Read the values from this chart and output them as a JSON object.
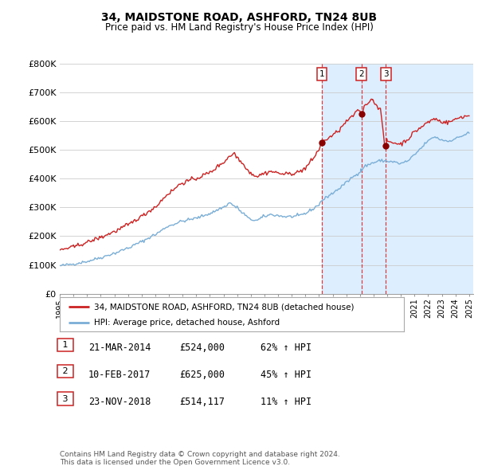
{
  "title": "34, MAIDSTONE ROAD, ASHFORD, TN24 8UB",
  "subtitle": "Price paid vs. HM Land Registry's House Price Index (HPI)",
  "ylim": [
    0,
    800000
  ],
  "yticks": [
    0,
    100000,
    200000,
    300000,
    400000,
    500000,
    600000,
    700000,
    800000
  ],
  "ytick_labels": [
    "£0",
    "£100K",
    "£200K",
    "£300K",
    "£400K",
    "£500K",
    "£600K",
    "£700K",
    "£800K"
  ],
  "xlim_start": 1995.0,
  "xlim_end": 2025.3,
  "transactions": [
    {
      "date_num": 2014.22,
      "price": 524000,
      "label": "1",
      "date_str": "21-MAR-2014",
      "price_str": "£524,000",
      "pct_str": "62% ↑ HPI"
    },
    {
      "date_num": 2017.11,
      "price": 625000,
      "label": "2",
      "date_str": "10-FEB-2017",
      "price_str": "£625,000",
      "pct_str": "45% ↑ HPI"
    },
    {
      "date_num": 2018.9,
      "price": 514117,
      "label": "3",
      "date_str": "23-NOV-2018",
      "price_str": "£514,117",
      "pct_str": "11% ↑ HPI"
    }
  ],
  "line_color_red": "#cc2222",
  "line_color_blue": "#7aaed6",
  "shade_color": "#ddeeff",
  "grid_color": "#cccccc",
  "background_color": "#ffffff",
  "legend_label_red": "34, MAIDSTONE ROAD, ASHFORD, TN24 8UB (detached house)",
  "legend_label_blue": "HPI: Average price, detached house, Ashford",
  "footnote": "Contains HM Land Registry data © Crown copyright and database right 2024.\nThis data is licensed under the Open Government Licence v3.0.",
  "hpi_waypoints": [
    [
      1995.0,
      97000
    ],
    [
      1996.0,
      103000
    ],
    [
      1997.0,
      112000
    ],
    [
      1998.0,
      125000
    ],
    [
      1999.0,
      140000
    ],
    [
      2000.0,
      158000
    ],
    [
      2001.0,
      180000
    ],
    [
      2002.0,
      205000
    ],
    [
      2003.0,
      235000
    ],
    [
      2004.0,
      252000
    ],
    [
      2005.0,
      262000
    ],
    [
      2006.0,
      278000
    ],
    [
      2007.0,
      300000
    ],
    [
      2007.5,
      315000
    ],
    [
      2008.0,
      300000
    ],
    [
      2008.5,
      278000
    ],
    [
      2009.0,
      258000
    ],
    [
      2009.5,
      255000
    ],
    [
      2010.0,
      268000
    ],
    [
      2010.5,
      275000
    ],
    [
      2011.0,
      272000
    ],
    [
      2011.5,
      268000
    ],
    [
      2012.0,
      268000
    ],
    [
      2012.5,
      270000
    ],
    [
      2013.0,
      278000
    ],
    [
      2013.5,
      292000
    ],
    [
      2014.0,
      308000
    ],
    [
      2014.22,
      323000
    ],
    [
      2015.0,
      348000
    ],
    [
      2015.5,
      365000
    ],
    [
      2016.0,
      385000
    ],
    [
      2016.5,
      405000
    ],
    [
      2017.0,
      422000
    ],
    [
      2017.11,
      430000
    ],
    [
      2017.5,
      445000
    ],
    [
      2018.0,
      455000
    ],
    [
      2018.5,
      462000
    ],
    [
      2018.9,
      462000
    ],
    [
      2019.0,
      460000
    ],
    [
      2019.5,
      458000
    ],
    [
      2020.0,
      452000
    ],
    [
      2020.5,
      460000
    ],
    [
      2021.0,
      480000
    ],
    [
      2021.5,
      505000
    ],
    [
      2022.0,
      530000
    ],
    [
      2022.5,
      545000
    ],
    [
      2023.0,
      535000
    ],
    [
      2023.5,
      530000
    ],
    [
      2024.0,
      538000
    ],
    [
      2024.5,
      548000
    ],
    [
      2025.0,
      558000
    ]
  ],
  "prop_waypoints": [
    [
      1995.0,
      152000
    ],
    [
      1996.0,
      162000
    ],
    [
      1997.0,
      178000
    ],
    [
      1998.0,
      195000
    ],
    [
      1999.0,
      215000
    ],
    [
      2000.0,
      238000
    ],
    [
      2001.0,
      268000
    ],
    [
      2002.0,
      300000
    ],
    [
      2003.0,
      348000
    ],
    [
      2004.0,
      385000
    ],
    [
      2005.0,
      400000
    ],
    [
      2006.0,
      420000
    ],
    [
      2007.0,
      455000
    ],
    [
      2007.5,
      478000
    ],
    [
      2007.8,
      488000
    ],
    [
      2008.0,
      475000
    ],
    [
      2008.5,
      450000
    ],
    [
      2009.0,
      420000
    ],
    [
      2009.5,
      408000
    ],
    [
      2010.0,
      418000
    ],
    [
      2010.5,
      425000
    ],
    [
      2011.0,
      420000
    ],
    [
      2011.5,
      415000
    ],
    [
      2012.0,
      418000
    ],
    [
      2012.5,
      422000
    ],
    [
      2013.0,
      435000
    ],
    [
      2013.5,
      462000
    ],
    [
      2014.0,
      498000
    ],
    [
      2014.22,
      524000
    ],
    [
      2014.5,
      535000
    ],
    [
      2015.0,
      548000
    ],
    [
      2015.5,
      568000
    ],
    [
      2016.0,
      595000
    ],
    [
      2016.5,
      618000
    ],
    [
      2017.0,
      638000
    ],
    [
      2017.11,
      625000
    ],
    [
      2017.5,
      658000
    ],
    [
      2017.8,
      672000
    ],
    [
      2017.9,
      680000
    ],
    [
      2018.0,
      668000
    ],
    [
      2018.5,
      645000
    ],
    [
      2018.9,
      514117
    ],
    [
      2019.0,
      530000
    ],
    [
      2019.5,
      525000
    ],
    [
      2020.0,
      520000
    ],
    [
      2020.5,
      535000
    ],
    [
      2021.0,
      560000
    ],
    [
      2021.5,
      578000
    ],
    [
      2022.0,
      595000
    ],
    [
      2022.5,
      608000
    ],
    [
      2023.0,
      598000
    ],
    [
      2023.5,
      595000
    ],
    [
      2024.0,
      605000
    ],
    [
      2024.5,
      615000
    ],
    [
      2025.0,
      618000
    ]
  ]
}
